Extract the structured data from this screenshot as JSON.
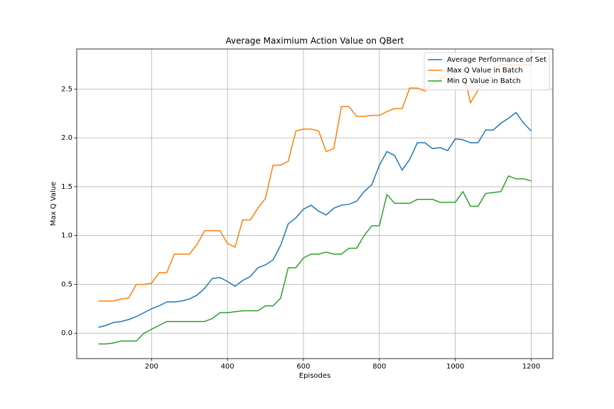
{
  "chart_data": {
    "type": "line",
    "title": "Average Maximium Action Value on QBert",
    "xlabel": "Episodes",
    "ylabel": "Max Q Value",
    "x": [
      60,
      80,
      100,
      120,
      140,
      160,
      180,
      200,
      220,
      240,
      260,
      280,
      300,
      320,
      340,
      360,
      380,
      400,
      420,
      440,
      460,
      480,
      500,
      520,
      540,
      560,
      580,
      600,
      620,
      640,
      660,
      680,
      700,
      720,
      740,
      760,
      780,
      800,
      820,
      840,
      860,
      880,
      900,
      920,
      940,
      960,
      980,
      1000,
      1020,
      1040,
      1060,
      1080,
      1100,
      1120,
      1140,
      1160,
      1180,
      1200
    ],
    "series": [
      {
        "name": "Average Performance of Set",
        "color": "#1f77b4",
        "values": [
          0.06,
          0.08,
          0.11,
          0.12,
          0.14,
          0.17,
          0.21,
          0.25,
          0.28,
          0.32,
          0.32,
          0.33,
          0.35,
          0.39,
          0.46,
          0.56,
          0.57,
          0.53,
          0.48,
          0.54,
          0.58,
          0.67,
          0.7,
          0.75,
          0.9,
          1.12,
          1.18,
          1.27,
          1.31,
          1.25,
          1.21,
          1.28,
          1.31,
          1.32,
          1.35,
          1.45,
          1.52,
          1.72,
          1.86,
          1.82,
          1.67,
          1.78,
          1.95,
          1.95,
          1.89,
          1.9,
          1.87,
          1.99,
          1.98,
          1.95,
          1.95,
          2.08,
          2.08,
          2.15,
          2.2,
          2.26,
          2.15,
          2.07
        ]
      },
      {
        "name": "Max Q Value in Batch",
        "color": "#ff7f0e",
        "values": [
          0.33,
          0.33,
          0.33,
          0.35,
          0.36,
          0.5,
          0.5,
          0.51,
          0.62,
          0.62,
          0.81,
          0.81,
          0.81,
          0.91,
          1.05,
          1.05,
          1.05,
          0.92,
          0.88,
          1.16,
          1.16,
          1.28,
          1.38,
          1.72,
          1.72,
          1.76,
          2.07,
          2.09,
          2.09,
          2.07,
          1.86,
          1.89,
          2.32,
          2.32,
          2.22,
          2.22,
          2.23,
          2.23,
          2.27,
          2.3,
          2.3,
          2.51,
          2.51,
          2.48,
          2.55,
          2.6,
          2.65,
          2.7,
          2.7,
          2.36,
          2.49,
          2.55,
          2.65,
          2.75,
          2.75,
          2.75,
          2.75,
          2.75
        ]
      },
      {
        "name": "Min Q Value in Batch",
        "color": "#2ca02c",
        "values": [
          -0.11,
          -0.11,
          -0.1,
          -0.08,
          -0.08,
          -0.08,
          0.0,
          0.04,
          0.08,
          0.12,
          0.12,
          0.12,
          0.12,
          0.12,
          0.12,
          0.15,
          0.21,
          0.21,
          0.22,
          0.23,
          0.23,
          0.23,
          0.28,
          0.28,
          0.36,
          0.67,
          0.67,
          0.77,
          0.81,
          0.81,
          0.83,
          0.81,
          0.81,
          0.87,
          0.87,
          1.0,
          1.1,
          1.1,
          1.42,
          1.33,
          1.33,
          1.33,
          1.37,
          1.37,
          1.37,
          1.34,
          1.34,
          1.34,
          1.45,
          1.3,
          1.3,
          1.43,
          1.44,
          1.45,
          1.61,
          1.58,
          1.58,
          1.56
        ]
      }
    ],
    "xlim": [
      3,
      1257
    ],
    "ylim": [
      -0.26,
      2.91
    ],
    "xticks": [
      200,
      400,
      600,
      800,
      1000,
      1200
    ],
    "yticks": [
      {
        "value": 0,
        "label": "0.0"
      },
      0.5,
      {
        "value": 1,
        "label": "1.0"
      },
      1.5,
      {
        "value": 2,
        "label": "2.0"
      },
      2.5
    ],
    "grid": true,
    "legend": "upper right"
  }
}
